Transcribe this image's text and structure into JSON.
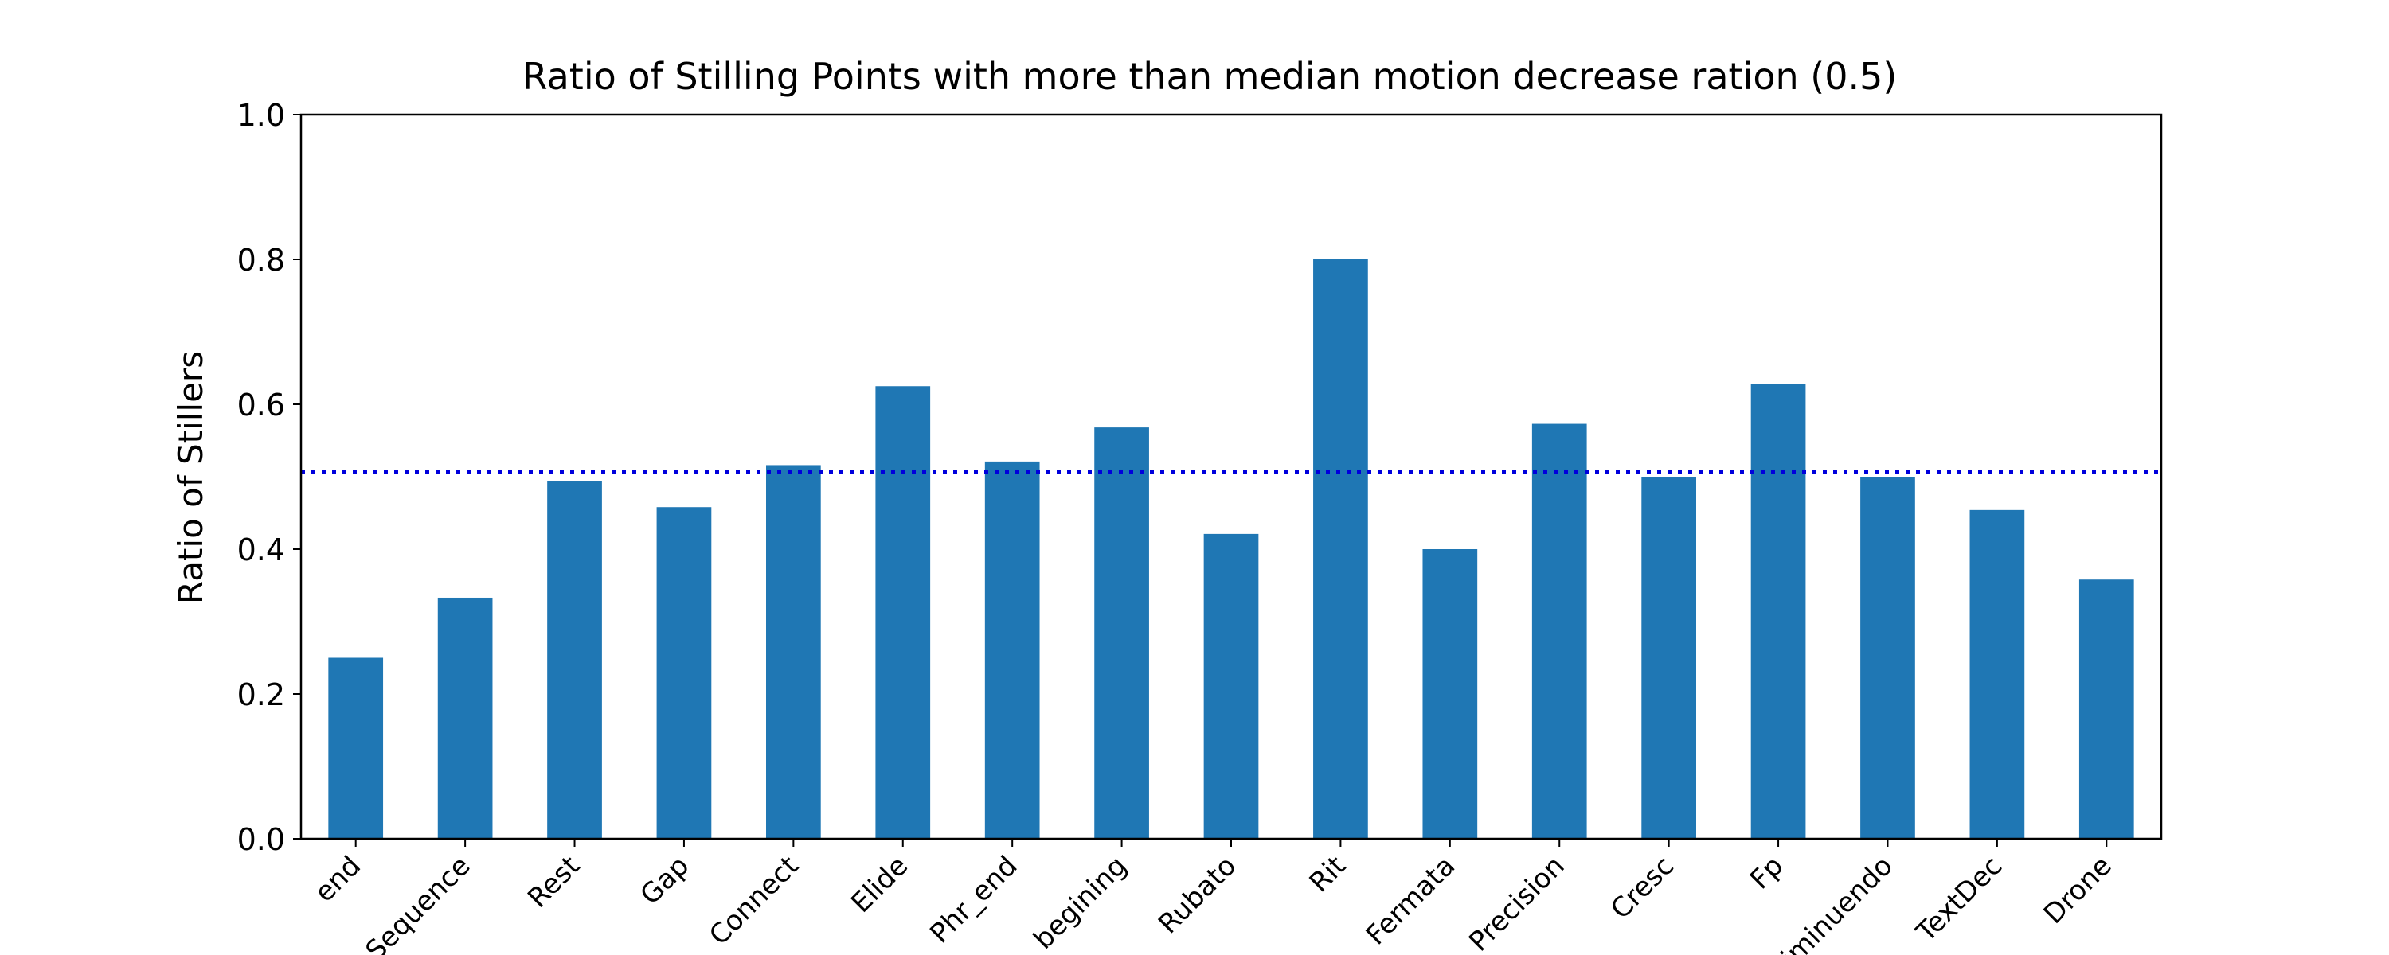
{
  "chart_data": {
    "type": "bar",
    "title": "Ratio of Stilling Points with more than median motion decrease ration (0.5)",
    "xlabel": "",
    "ylabel": "Ratio of Stillers",
    "ylim": [
      0.0,
      1.0
    ],
    "yticks": [
      "0.0",
      "0.2",
      "0.4",
      "0.6",
      "0.8",
      "1.0"
    ],
    "categories": [
      "end",
      "Sequence",
      "Rest",
      "Gap",
      "Connect",
      "Elide",
      "Phr_end",
      "begining",
      "Rubato",
      "Rit",
      "Fermata",
      "Precision",
      "Cresc",
      "Fp",
      "Diminuendo",
      "TextDec",
      "Drone"
    ],
    "values": [
      0.25,
      0.333,
      0.494,
      0.458,
      0.516,
      0.625,
      0.521,
      0.568,
      0.421,
      0.8,
      0.4,
      0.573,
      0.5,
      0.628,
      0.5,
      0.454,
      0.358
    ],
    "reference_line": {
      "value": 0.506,
      "style": "dotted",
      "color": "#0000dd"
    },
    "bar_color": "#1f77b4",
    "grid": false,
    "legend": "none"
  }
}
